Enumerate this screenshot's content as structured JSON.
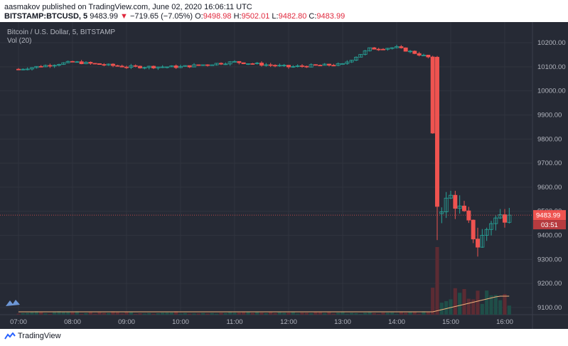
{
  "header": {
    "publisher_line": "aasmakov published on TradingView.com, June 02, 2020 16:06:11 UTC",
    "symbol": "BITSTAMP:BTCUSD, 5",
    "last": "9483.99",
    "change_arrow": "▼",
    "change": "−719.65 (−7.05%)",
    "o_label": "O:",
    "o_value": "9498.98",
    "h_label": "H:",
    "h_value": "9502.01",
    "l_label": "L:",
    "l_value": "9482.80",
    "c_label": "C:",
    "c_value": "9483.99"
  },
  "legend": {
    "title": "Bitcoin / U.S. Dollar, 5, BITSTAMP",
    "volume": "Vol (20)"
  },
  "price_tag": {
    "price": "9483.99",
    "countdown": "03:51"
  },
  "footer": {
    "brand": "TradingView"
  },
  "colors": {
    "background": "#262a35",
    "up": "#26a69a",
    "down": "#ef5350",
    "grid": "#30343f",
    "volume_ma": "#f0b27a"
  },
  "chart_data": {
    "type": "candlestick",
    "x_tick_labels": [
      "07:00",
      "08:00",
      "09:00",
      "10:00",
      "11:00",
      "12:00",
      "13:00",
      "14:00",
      "15:00",
      "16:00"
    ],
    "y_tick_labels": [
      "10200.00",
      "10100.00",
      "10000.00",
      "9900.00",
      "9800.00",
      "9700.00",
      "9600.00",
      "9500.00",
      "9400.00",
      "9300.00",
      "9200.00",
      "9100.00"
    ],
    "y_range": [
      9070,
      10260
    ],
    "interval_minutes": 5,
    "grid": true,
    "price_line": 9483.99,
    "hourly_levels": [
      {
        "t": "07:00",
        "close": 10090
      },
      {
        "t": "08:00",
        "close": 10120
      },
      {
        "t": "09:00",
        "close": 10100
      },
      {
        "t": "10:00",
        "close": 10100
      },
      {
        "t": "11:00",
        "close": 10120
      },
      {
        "t": "12:00",
        "close": 10100
      },
      {
        "t": "13:00",
        "close": 10110
      },
      {
        "t": "13:30",
        "close": 10175
      },
      {
        "t": "14:00",
        "close": 10180
      },
      {
        "t": "14:35",
        "close": 10140
      },
      {
        "t": "14:45",
        "close": 9500
      },
      {
        "t": "15:00",
        "close": 9560
      },
      {
        "t": "15:15",
        "close": 9480
      },
      {
        "t": "15:30",
        "close": 9360
      },
      {
        "t": "15:45",
        "close": 9460
      },
      {
        "t": "16:00",
        "close": 9483.99
      }
    ]
  }
}
